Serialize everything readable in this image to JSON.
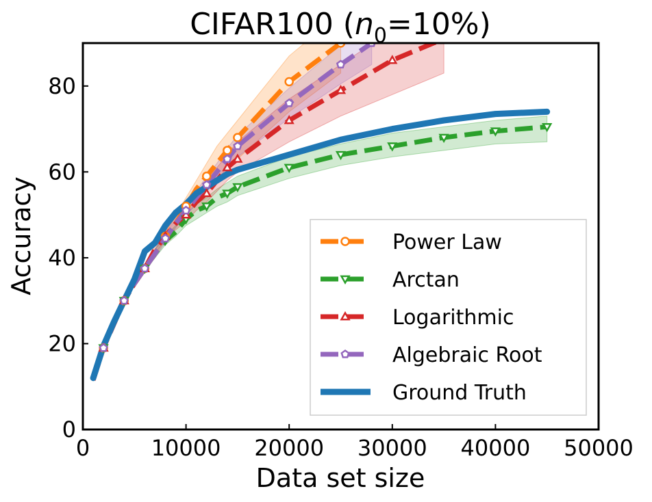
{
  "chart_data": {
    "type": "line",
    "title": "CIFAR100 (",
    "title_math_var": "n",
    "title_math_sub": "0",
    "title_rest": "=10%)",
    "xlabel": "Data set size",
    "ylabel": "Accuracy",
    "xlim": [
      0,
      50000
    ],
    "ylim": [
      0,
      90
    ],
    "xticks": [
      0,
      10000,
      20000,
      30000,
      40000,
      50000
    ],
    "yticks": [
      0,
      20,
      40,
      60,
      80
    ],
    "grid": false,
    "legend_position": "lower-right",
    "series": [
      {
        "name": "Power Law",
        "color": "#ff7f0e",
        "style": "dashed",
        "marker": "circle",
        "x": [
          1000,
          2000,
          3000,
          4000,
          5000,
          6000,
          7000,
          8000,
          9000,
          10000,
          11000,
          12000,
          13000,
          14000,
          15000,
          20000,
          25000
        ],
        "y": [
          12,
          19,
          25,
          30,
          34,
          37.5,
          41,
          45,
          48,
          52,
          56,
          59,
          62,
          65,
          68,
          81,
          90
        ],
        "band_low": [
          12,
          19,
          25,
          30,
          34,
          37,
          40,
          44,
          47,
          50,
          53,
          56,
          58,
          61,
          63,
          74,
          83
        ],
        "band_high": [
          12,
          19,
          25,
          30,
          34,
          38,
          42,
          46,
          50,
          54,
          58,
          62,
          66,
          69,
          72,
          87,
          97
        ]
      },
      {
        "name": "Arctan",
        "color": "#2ca02c",
        "style": "dashed",
        "marker": "triangle-down",
        "x": [
          1000,
          2000,
          3000,
          4000,
          5000,
          6000,
          7000,
          8000,
          9000,
          10000,
          11000,
          12000,
          13000,
          14000,
          15000,
          20000,
          25000,
          30000,
          35000,
          40000,
          45000
        ],
        "y": [
          12,
          19,
          25,
          30,
          34,
          37.5,
          41,
          44,
          46,
          49,
          51,
          52,
          54,
          55,
          56.5,
          61,
          64,
          66,
          68,
          69.5,
          70.5
        ],
        "band_low": [
          12,
          19,
          25,
          30,
          34,
          37,
          40,
          43,
          45,
          47.5,
          49,
          50.5,
          52,
          53,
          54.5,
          58.5,
          61.5,
          63.5,
          65,
          66.5,
          67
        ],
        "band_high": [
          12,
          19,
          25,
          30,
          34,
          38,
          42,
          45,
          47.5,
          50,
          52.5,
          54,
          56,
          57.5,
          59,
          63.5,
          66.5,
          69,
          70.5,
          72,
          73
        ]
      },
      {
        "name": "Logarithmic",
        "color": "#d62728",
        "style": "dashed",
        "marker": "triangle-up",
        "x": [
          1000,
          2000,
          3000,
          4000,
          5000,
          6000,
          7000,
          8000,
          9000,
          10000,
          11000,
          12000,
          13000,
          14000,
          15000,
          20000,
          25000,
          30000,
          35000
        ],
        "y": [
          11.5,
          19,
          24.5,
          30,
          34,
          37.5,
          42,
          45,
          48,
          50,
          53,
          55,
          58,
          61,
          63,
          72,
          79,
          86,
          91
        ],
        "band_low": [
          11.5,
          19,
          24.5,
          30,
          34,
          37,
          41,
          44,
          46.5,
          48.5,
          51,
          53,
          55.5,
          58,
          60,
          67,
          73,
          78,
          83
        ],
        "band_high": [
          11.5,
          19,
          24.5,
          30,
          34,
          38,
          43,
          46,
          49.5,
          52,
          55,
          58,
          61,
          64,
          67,
          77,
          85,
          93,
          100
        ]
      },
      {
        "name": "Algebraic Root",
        "color": "#9467bd",
        "style": "dashed",
        "marker": "pentagon",
        "x": [
          1000,
          2000,
          3000,
          4000,
          5000,
          6000,
          7000,
          8000,
          9000,
          10000,
          11000,
          12000,
          13000,
          14000,
          15000,
          20000,
          25000,
          28000
        ],
        "y": [
          12,
          19,
          25,
          30,
          34,
          37.5,
          41,
          44.5,
          48,
          51,
          54,
          57,
          60,
          63,
          66,
          76,
          85,
          90
        ],
        "band_low": [
          12,
          19,
          25,
          30,
          34,
          37,
          40,
          43.5,
          47,
          50,
          52.5,
          55.5,
          58,
          61,
          63.5,
          72.5,
          80.5,
          85
        ],
        "band_high": [
          12,
          19,
          25,
          30,
          34,
          38,
          42,
          45.5,
          49,
          52.5,
          55.5,
          59,
          62,
          65.5,
          68.5,
          79.5,
          89.5,
          95
        ]
      },
      {
        "name": "Ground Truth",
        "color": "#1f77b4",
        "style": "solid",
        "marker": "none",
        "x": [
          1000,
          2000,
          3000,
          4000,
          5000,
          6000,
          7000,
          8000,
          9000,
          10000,
          11000,
          12000,
          13000,
          14000,
          15000,
          20000,
          25000,
          30000,
          35000,
          40000,
          45000
        ],
        "y": [
          12,
          19.5,
          25,
          30,
          35,
          41.5,
          43.5,
          47.5,
          50.5,
          52.5,
          55,
          56.5,
          58,
          59.5,
          60.5,
          64,
          67.5,
          70,
          72,
          73.5,
          74
        ]
      }
    ]
  }
}
